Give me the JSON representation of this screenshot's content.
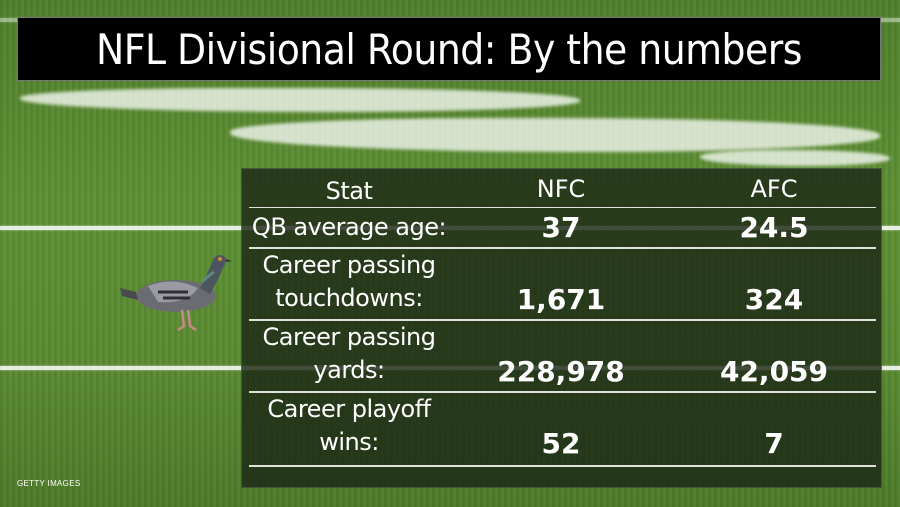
{
  "title": "NFL Divisional Round: By the numbers",
  "credit": "GETTY IMAGES",
  "table": {
    "headers": [
      "Stat",
      "NFC",
      "AFC"
    ],
    "rows": [
      {
        "label": "QB average age:",
        "nfc": "37",
        "afc": "24.5"
      },
      {
        "label_line1": "Career passing",
        "label_line2": "touchdowns:",
        "nfc": "1,671",
        "afc": "324"
      },
      {
        "label_line1": "Career passing",
        "label_line2": "yards:",
        "nfc": "228,978",
        "afc": "42,059"
      },
      {
        "label_line1": "Career playoff",
        "label_line2": "wins:",
        "nfc": "52",
        "afc": "7"
      }
    ]
  },
  "colors": {
    "field_green": "#5a8a31",
    "panel": "#1c2816",
    "title_bg": "#000000",
    "text": "#ffffff"
  },
  "icons": {
    "bird": "pigeon-icon"
  }
}
